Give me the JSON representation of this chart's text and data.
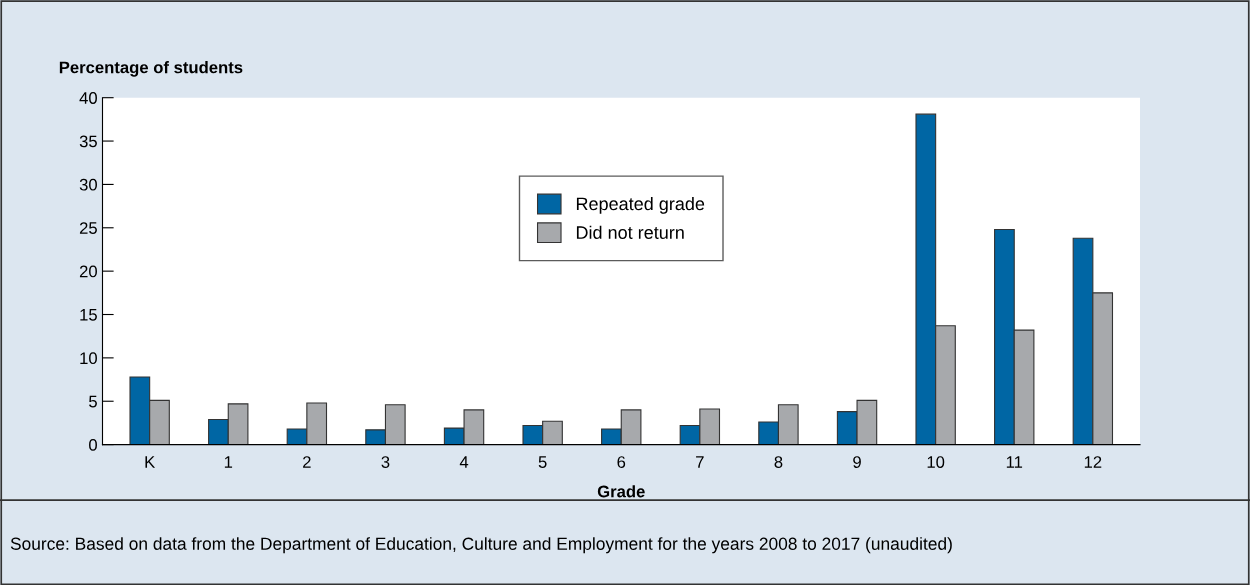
{
  "chart_data": {
    "type": "bar",
    "ylabel": "Percentage of students",
    "xlabel": "Grade",
    "categories": [
      "K",
      "1",
      "2",
      "3",
      "4",
      "5",
      "6",
      "7",
      "8",
      "9",
      "10",
      "11",
      "12"
    ],
    "series": [
      {
        "name": "Repeated grade",
        "color": "#0066a4",
        "values": [
          7.8,
          2.9,
          1.8,
          1.7,
          1.9,
          2.2,
          1.8,
          2.2,
          2.6,
          3.8,
          38.1,
          24.8,
          23.8
        ]
      },
      {
        "name": "Did not return",
        "color": "#a7a9ac",
        "values": [
          5.1,
          4.7,
          4.8,
          4.6,
          4.0,
          2.7,
          4.0,
          4.1,
          4.6,
          5.1,
          13.7,
          13.2,
          17.5
        ]
      }
    ],
    "ylim": [
      0,
      40
    ],
    "yticks": [
      0,
      5,
      10,
      15,
      20,
      25,
      30,
      35,
      40
    ],
    "legend": "top center",
    "annotations": [
      "Source: Based on data from the Department of Education, Culture and Employment for the years 2008 to 2017 (unaudited)"
    ]
  }
}
